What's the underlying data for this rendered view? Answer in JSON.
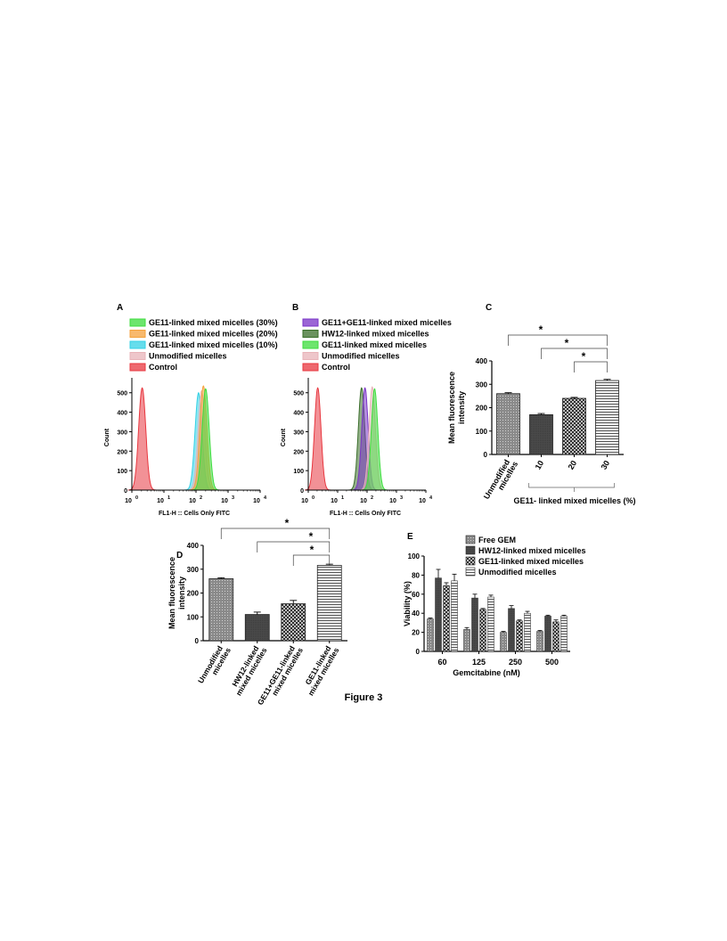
{
  "figure_title": "Figure 3",
  "colors": {
    "green": "#3ddc3d",
    "orange": "#f5a23c",
    "cyan": "#33d1e6",
    "pink": "#e8b3b8",
    "red": "#e8373f",
    "purple": "#7a33c7",
    "dark_green": "#3a6e2a",
    "bar_dark": "#454545",
    "bar_mid": "#7f7f7f"
  },
  "chart_data": [
    {
      "panel": "A",
      "type": "area",
      "xlabel": "FL1-H :: Cells Only FITC",
      "ylabel": "Count",
      "x_scale": "log",
      "x_ticks": [
        "10",
        "1",
        "10",
        "2",
        "10",
        "3",
        "10",
        "4",
        "10",
        "0"
      ],
      "y_ticks": [
        "0",
        "100",
        "200",
        "300",
        "400",
        "500"
      ],
      "ylim": [
        0,
        540
      ],
      "legend": [
        {
          "label": "GE11-linked mixed micelles (30%)",
          "color": "#3ddc3d"
        },
        {
          "label": "GE11-linked mixed micelles (20%)",
          "color": "#f5a23c"
        },
        {
          "label": "GE11-linked mixed micelles (10%)",
          "color": "#33d1e6"
        },
        {
          "label": "Unmodified micelles",
          "color": "#e8b3b8"
        },
        {
          "label": "Control",
          "color": "#e8373f"
        }
      ],
      "series": [
        {
          "label": "Control",
          "peak_x": 2.1,
          "peak_count": 525,
          "color": "#e8373f"
        },
        {
          "label": "GE11-linked mixed micelles (10%)",
          "peak_x": 120,
          "peak_count": 500,
          "color": "#33d1e6"
        },
        {
          "label": "Unmodified micelles",
          "peak_x": 150,
          "peak_count": 510,
          "color": "#e8b3b8"
        },
        {
          "label": "GE11-linked mixed micelles (20%)",
          "peak_x": 170,
          "peak_count": 535,
          "color": "#f5a23c"
        },
        {
          "label": "GE11-linked mixed micelles (30%)",
          "peak_x": 200,
          "peak_count": 520,
          "color": "#3ddc3d"
        }
      ]
    },
    {
      "panel": "B",
      "type": "area",
      "xlabel": "FL1-H :: Cells Only FITC",
      "ylabel": "Count",
      "x_scale": "log",
      "x_ticks": [
        "10",
        "1",
        "10",
        "2",
        "10",
        "3",
        "10",
        "4",
        "10",
        "0"
      ],
      "y_ticks": [
        "0",
        "100",
        "200",
        "300",
        "400",
        "500"
      ],
      "ylim": [
        0,
        540
      ],
      "legend": [
        {
          "label": "GE11+GE11-linked mixed micelles",
          "color": "#7a33c7"
        },
        {
          "label": "HW12-linked mixed micelles",
          "color": "#3a6e2a"
        },
        {
          "label": "GE11-linked mixed micelles",
          "color": "#3ddc3d"
        },
        {
          "label": "Unmodified micelles",
          "color": "#e8b3b8"
        },
        {
          "label": "Control",
          "color": "#e8373f"
        }
      ],
      "series": [
        {
          "label": "Control",
          "peak_x": 2.1,
          "peak_count": 525,
          "color": "#e8373f"
        },
        {
          "label": "HW12-linked mixed micelles",
          "peak_x": 65,
          "peak_count": 525,
          "color": "#3a6e2a"
        },
        {
          "label": "GE11+GE11-linked mixed micelles",
          "peak_x": 85,
          "peak_count": 525,
          "color": "#7a33c7"
        },
        {
          "label": "Unmodified micelles",
          "peak_x": 150,
          "peak_count": 530,
          "color": "#e8b3b8"
        },
        {
          "label": "GE11-linked mixed micelles",
          "peak_x": 180,
          "peak_count": 520,
          "color": "#3ddc3d"
        }
      ]
    },
    {
      "panel": "C",
      "type": "bar",
      "ylabel": "Mean fluorescence intensity",
      "xlabel": "GE11- linked mixed micelles (%)",
      "categories": [
        "Unmodified micelles",
        "10",
        "20",
        "30"
      ],
      "values": [
        260,
        170,
        240,
        316
      ],
      "errors": [
        4,
        5,
        4,
        5
      ],
      "ylim": [
        0,
        400
      ],
      "y_ticks": [
        "0",
        "100",
        "200",
        "300",
        "400"
      ],
      "significance": [
        {
          "from": 0,
          "to": 3,
          "label": "*"
        },
        {
          "from": 1,
          "to": 3,
          "label": "*"
        },
        {
          "from": 2,
          "to": 3,
          "label": "*"
        }
      ]
    },
    {
      "panel": "D",
      "type": "bar",
      "ylabel": "Mean fluorescence intensity",
      "categories": [
        "Unmodified micelles",
        "HW12-linked mixed micelles",
        "GE11+GE11-linked mixed micelles",
        "GE11-linked mixed micelles"
      ],
      "values": [
        260,
        110,
        155,
        316
      ],
      "errors": [
        4,
        10,
        14,
        5
      ],
      "ylim": [
        0,
        400
      ],
      "y_ticks": [
        "0",
        "100",
        "200",
        "300",
        "400"
      ],
      "significance": [
        {
          "from": 0,
          "to": 3,
          "label": "*"
        },
        {
          "from": 1,
          "to": 3,
          "label": "*"
        },
        {
          "from": 2,
          "to": 3,
          "label": "*"
        }
      ]
    },
    {
      "panel": "E",
      "type": "bar",
      "ylabel": "Viability (%)",
      "xlabel": "Gemcitabine (nM)",
      "categories": [
        "60",
        "125",
        "250",
        "500"
      ],
      "ylim": [
        0,
        100
      ],
      "y_ticks": [
        "0",
        "20",
        "40",
        "60",
        "80",
        "100"
      ],
      "series": [
        {
          "name": "Free GEM",
          "values": [
            34,
            23,
            20,
            21
          ],
          "errors": [
            1,
            2,
            1,
            1
          ]
        },
        {
          "name": "HW12-linked mixed micelles",
          "values": [
            77,
            56,
            45,
            37
          ],
          "errors": [
            9,
            4,
            3,
            1
          ]
        },
        {
          "name": "GE11-linked mixed micelles",
          "values": [
            69,
            44,
            32,
            31
          ],
          "errors": [
            3,
            1,
            1,
            2
          ]
        },
        {
          "name": "Unmodified micelles",
          "values": [
            74,
            57,
            40,
            37
          ],
          "errors": [
            7,
            2,
            2,
            1
          ]
        }
      ]
    }
  ]
}
